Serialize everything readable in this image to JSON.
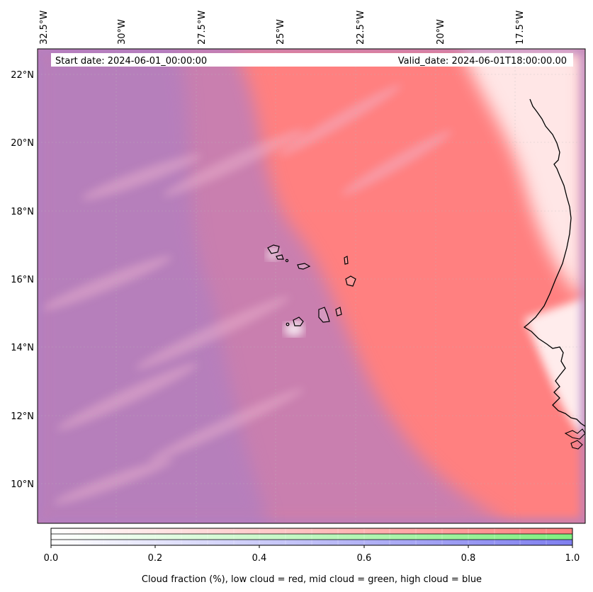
{
  "header": {
    "start_date": "Start date: 2024-06-01_00:00:00",
    "valid_date": "Valid_date: 2024-06-01T18:00:00.00"
  },
  "map": {
    "lon_labels": [
      "32.5°W",
      "30°W",
      "27.5°W",
      "25°W",
      "22.5°W",
      "20°W",
      "17.5°W"
    ],
    "lat_labels": [
      "22°N",
      "20°N",
      "18°N",
      "16°N",
      "14°N",
      "12°N",
      "10°N"
    ],
    "colors": {
      "low_cloud": "#ff7f7f",
      "mid_cloud": "#7fef7f",
      "high_cloud": "#7f7fef",
      "mixed": "#c07fb0"
    }
  },
  "colorbar": {
    "ticks": [
      "0.0",
      "0.2",
      "0.4",
      "0.6",
      "0.8",
      "1.0"
    ],
    "label": "Cloud fraction (%), low cloud = red, mid cloud = green, high cloud = blue",
    "rows": [
      {
        "name": "low",
        "color": "#ff7f7f"
      },
      {
        "name": "mid",
        "color": "#7fef7f"
      },
      {
        "name": "high",
        "color": "#7f7fef"
      }
    ]
  }
}
